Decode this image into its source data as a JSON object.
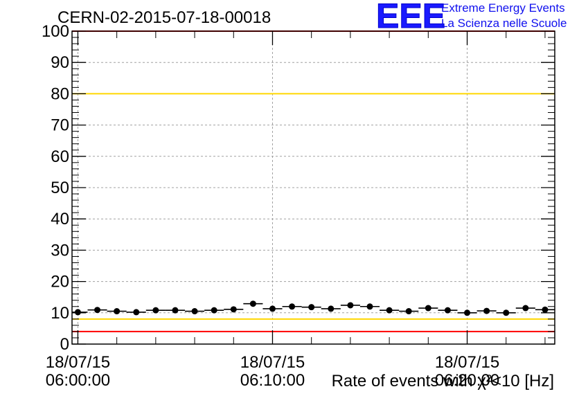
{
  "chart_data": {
    "type": "scatter",
    "title": "CERN-02-2015-07-18-00018",
    "xlabel": "Rate of events with χ²<10 [Hz]",
    "ylabel": "",
    "ylim": [
      0,
      100
    ],
    "yticks": [
      0,
      10,
      20,
      30,
      40,
      50,
      60,
      70,
      80,
      90,
      100
    ],
    "xlim_minutes": [
      -0.3,
      24.5
    ],
    "xticks": [
      {
        "minute": 0,
        "date": "18/07/15",
        "time": "06:00:00"
      },
      {
        "minute": 10,
        "date": "18/07/15",
        "time": "06:10:00"
      },
      {
        "minute": 20,
        "date": "18/07/15",
        "time": "06:20:00"
      }
    ],
    "grid": true,
    "reference_lines": [
      {
        "y": 100,
        "color": "#ff0000"
      },
      {
        "y": 80,
        "color": "#ffd700"
      },
      {
        "y": 8,
        "color": "#ffd700"
      },
      {
        "y": 4,
        "color": "#ff0000"
      }
    ],
    "bin_width_minutes": 1,
    "series": [
      {
        "x_minutes": [
          0,
          1,
          2,
          3,
          4,
          5,
          6,
          7,
          8,
          9,
          10,
          11,
          12,
          13,
          14,
          15,
          16,
          17,
          18,
          19,
          20,
          21,
          22,
          23,
          24
        ],
        "values": [
          10.2,
          10.9,
          10.5,
          10.2,
          10.8,
          10.8,
          10.5,
          10.8,
          11.1,
          12.9,
          11.3,
          12.0,
          11.8,
          11.3,
          12.4,
          12.0,
          10.8,
          10.5,
          11.5,
          10.8,
          10.0,
          10.6,
          10.0,
          11.5,
          11.0
        ],
        "errors": [
          0.6,
          0.6,
          0.6,
          0.6,
          0.6,
          0.6,
          0.6,
          0.6,
          0.6,
          0.65,
          0.6,
          0.63,
          0.63,
          0.6,
          0.64,
          0.63,
          0.6,
          0.6,
          0.62,
          0.6,
          0.58,
          0.6,
          0.58,
          0.62,
          0.6
        ]
      }
    ]
  },
  "logo": {
    "mark": "EEE",
    "line1": "Extreme Energy Events",
    "line2": "La Scienza nelle Scuole",
    "color": "#1a1aff"
  }
}
